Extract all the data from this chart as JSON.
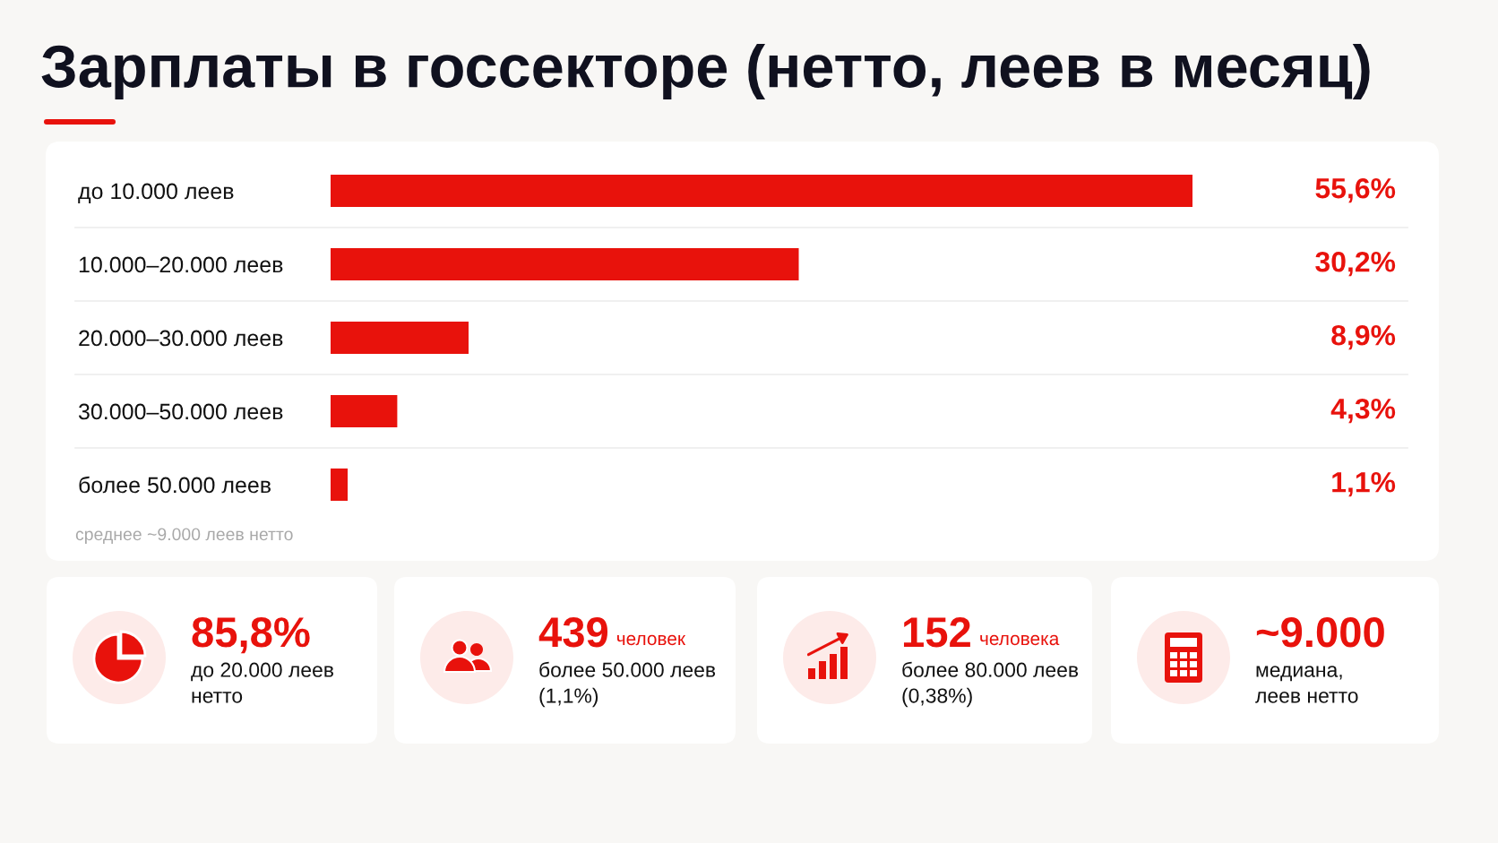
{
  "chart_data": {
    "type": "bar",
    "orientation": "horizontal",
    "title": "Зарплаты в госсекторе (нетто, леев в месяц)",
    "categories": [
      "до 10.000 леев",
      "10.000–20.000 леев",
      "20.000–30.000 леев",
      "30.000–50.000 леев",
      "более 50.000 леев"
    ],
    "values": [
      55.6,
      30.2,
      8.9,
      4.3,
      1.1
    ],
    "value_labels": [
      "55,6%",
      "30,2%",
      "8,9%",
      "4,3%",
      "1,1%"
    ],
    "color": "#e8120c",
    "grid": "y",
    "tick_labels": "y",
    "annotations": [
      "среднее ~9.000 леев нетто",
      "85,8%",
      "до 20.000 леев\nнетто",
      "439",
      "человек",
      "более 50.000 леев\n(1,1%)",
      "152",
      "человека",
      "более 80.000 леев\n(0,38%)",
      "~9.000",
      "медиана,\nлеев нетто"
    ]
  }
}
